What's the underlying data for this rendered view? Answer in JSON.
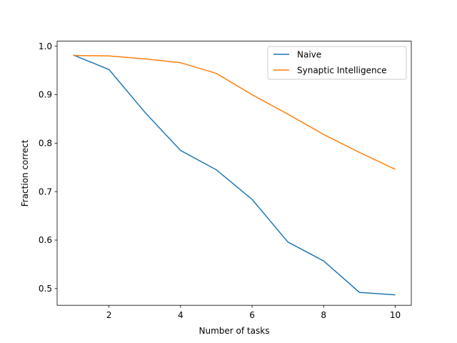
{
  "chart_data": {
    "type": "line",
    "xlabel": "Number of tasks",
    "ylabel": "Fraction correct",
    "xlim": [
      0.55,
      10.45
    ],
    "ylim": [
      0.4655,
      1.0105
    ],
    "xticks": [
      2,
      4,
      6,
      8,
      10
    ],
    "xtick_labels": [
      "2",
      "4",
      "6",
      "8",
      "10"
    ],
    "yticks": [
      0.5,
      0.6,
      0.7,
      0.8,
      0.9,
      1.0
    ],
    "ytick_labels": [
      "0.5",
      "0.6",
      "0.7",
      "0.8",
      "0.9",
      "1.0"
    ],
    "grid": false,
    "legend_position": "top-right",
    "x": [
      1,
      2,
      3,
      4,
      5,
      6,
      7,
      8,
      9,
      10
    ],
    "series": [
      {
        "name": "Naive",
        "color": "#1f77b4",
        "values": [
          0.982,
          0.952,
          0.864,
          0.785,
          0.745,
          0.684,
          0.596,
          0.557,
          0.492,
          0.487
        ]
      },
      {
        "name": "Synaptic Intelligence",
        "color": "#ff7f0e",
        "values": [
          0.981,
          0.98,
          0.974,
          0.966,
          0.944,
          0.9,
          0.86,
          0.818,
          0.781,
          0.746
        ]
      }
    ]
  }
}
